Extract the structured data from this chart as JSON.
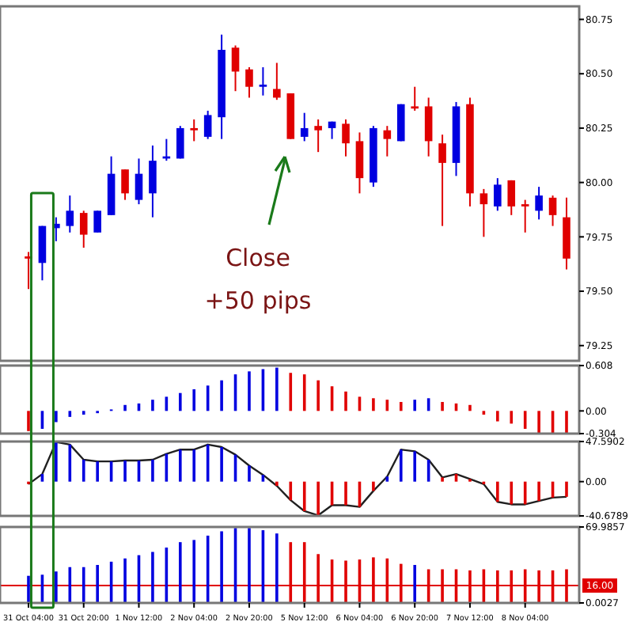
{
  "chart_data": [
    {
      "type": "candlestick",
      "ohlc": [
        [
          79.66,
          79.68,
          79.51,
          79.65
        ],
        [
          79.63,
          79.8,
          79.55,
          79.8
        ],
        [
          79.79,
          79.84,
          79.73,
          79.81
        ],
        [
          79.8,
          79.94,
          79.77,
          79.87
        ],
        [
          79.86,
          79.87,
          79.7,
          79.76
        ],
        [
          79.77,
          79.87,
          79.77,
          79.87
        ],
        [
          79.85,
          80.12,
          79.85,
          80.04
        ],
        [
          80.06,
          80.06,
          79.92,
          79.95
        ],
        [
          79.92,
          80.11,
          79.9,
          80.04
        ],
        [
          79.95,
          80.17,
          79.84,
          80.1
        ],
        [
          80.11,
          80.2,
          80.1,
          80.12
        ],
        [
          80.11,
          80.26,
          80.11,
          80.25
        ],
        [
          80.25,
          80.29,
          80.19,
          80.24
        ],
        [
          80.21,
          80.33,
          80.2,
          80.31
        ],
        [
          80.3,
          80.68,
          80.2,
          80.61
        ],
        [
          80.62,
          80.63,
          80.42,
          80.51
        ],
        [
          80.52,
          80.53,
          80.39,
          80.44
        ],
        [
          80.44,
          80.53,
          80.4,
          80.45
        ],
        [
          80.43,
          80.55,
          80.38,
          80.39
        ],
        [
          80.41,
          80.41,
          80.2,
          80.2
        ],
        [
          80.21,
          80.32,
          80.19,
          80.25
        ],
        [
          80.26,
          80.29,
          80.14,
          80.24
        ],
        [
          80.25,
          80.28,
          80.2,
          80.28
        ],
        [
          80.27,
          80.29,
          80.12,
          80.18
        ],
        [
          80.19,
          80.23,
          79.95,
          80.02
        ],
        [
          80.0,
          80.26,
          79.98,
          80.25
        ],
        [
          80.24,
          80.26,
          80.12,
          80.2
        ],
        [
          80.19,
          80.36,
          80.19,
          80.36
        ],
        [
          80.35,
          80.44,
          80.33,
          80.34
        ],
        [
          80.35,
          80.39,
          80.12,
          80.19
        ],
        [
          80.18,
          80.22,
          79.8,
          80.09
        ],
        [
          80.09,
          80.37,
          80.03,
          80.35
        ],
        [
          80.36,
          80.39,
          79.89,
          79.95
        ],
        [
          79.95,
          79.97,
          79.75,
          79.9
        ],
        [
          79.89,
          80.02,
          79.87,
          79.99
        ],
        [
          80.01,
          80.01,
          79.85,
          79.89
        ],
        [
          79.9,
          79.92,
          79.77,
          79.89
        ],
        [
          79.87,
          79.98,
          79.83,
          79.94
        ],
        [
          79.93,
          79.94,
          79.8,
          79.85
        ],
        [
          79.84,
          79.93,
          79.6,
          79.65
        ]
      ],
      "colors": [
        "#e00000",
        "#0000e0",
        "#0000e0",
        "#0000e0",
        "#e00000",
        "#0000e0",
        "#0000e0",
        "#e00000",
        "#0000e0",
        "#0000e0",
        "#0000e0",
        "#0000e0",
        "#e00000",
        "#0000e0",
        "#0000e0",
        "#e00000",
        "#e00000",
        "#0000e0",
        "#e00000",
        "#e00000",
        "#0000e0",
        "#e00000",
        "#0000e0",
        "#e00000",
        "#e00000",
        "#0000e0",
        "#e00000",
        "#0000e0",
        "#e00000",
        "#e00000",
        "#e00000",
        "#0000e0",
        "#e00000",
        "#e00000",
        "#0000e0",
        "#e00000",
        "#e00000",
        "#0000e0",
        "#e00000",
        "#e00000"
      ],
      "ylim": [
        79.18,
        80.81
      ],
      "yticks": [
        {
          "value": 79.25,
          "label": "79.25"
        },
        {
          "value": 79.5,
          "label": "79.50"
        },
        {
          "value": 79.75,
          "label": "79.75"
        },
        {
          "value": 80,
          "label": "80.00"
        },
        {
          "value": 80.25,
          "label": "80.25"
        },
        {
          "value": 80.5,
          "label": "80.50"
        },
        {
          "value": 80.75,
          "label": "80.75"
        }
      ],
      "tick_labels": "y",
      "annotations": [
        "Close\n+50 pips"
      ]
    },
    {
      "type": "bar",
      "values": [
        -0.27,
        -0.24,
        -0.15,
        -0.08,
        -0.05,
        -0.03,
        0.02,
        0.08,
        0.1,
        0.15,
        0.19,
        0.24,
        0.29,
        0.34,
        0.41,
        0.49,
        0.53,
        0.56,
        0.58,
        0.51,
        0.49,
        0.41,
        0.33,
        0.26,
        0.19,
        0.17,
        0.15,
        0.12,
        0.15,
        0.17,
        0.12,
        0.1,
        0.08,
        -0.05,
        -0.14,
        -0.17,
        -0.24,
        -0.3,
        -0.3,
        -0.3
      ],
      "colors": [
        "#e00000",
        "#0000e0",
        "#0000e0",
        "#0000e0",
        "#0000e0",
        "#0000e0",
        "#0000e0",
        "#0000e0",
        "#0000e0",
        "#0000e0",
        "#0000e0",
        "#0000e0",
        "#0000e0",
        "#0000e0",
        "#0000e0",
        "#0000e0",
        "#0000e0",
        "#0000e0",
        "#0000e0",
        "#e00000",
        "#e00000",
        "#e00000",
        "#e00000",
        "#e00000",
        "#e00000",
        "#e00000",
        "#e00000",
        "#e00000",
        "#0000e0",
        "#0000e0",
        "#e00000",
        "#e00000",
        "#e00000",
        "#e00000",
        "#e00000",
        "#e00000",
        "#e00000",
        "#e00000",
        "#e00000",
        "#e00000"
      ],
      "ylim": [
        -0.304,
        0.608
      ],
      "yticks": [
        -0.304,
        {
          "value": 0,
          "label": "0.00"
        },
        0.608
      ],
      "tick_labels": "y"
    },
    {
      "type": "bar",
      "series": [
        {
          "values": [
            -3,
            9,
            47,
            44,
            26,
            24,
            24,
            25,
            25,
            26,
            33,
            38,
            38,
            44,
            41,
            32,
            19,
            8,
            -5,
            -22,
            -35,
            -40,
            -28,
            -28,
            -30,
            -11,
            6,
            38,
            36,
            26,
            5,
            9,
            3,
            -3,
            -24,
            -27,
            -27,
            -23,
            -19,
            -18
          ],
          "colors": [
            "#e00000",
            "#0000e0",
            "#0000e0",
            "#0000e0",
            "#0000e0",
            "#0000e0",
            "#0000e0",
            "#0000e0",
            "#0000e0",
            "#0000e0",
            "#0000e0",
            "#0000e0",
            "#0000e0",
            "#0000e0",
            "#0000e0",
            "#0000e0",
            "#0000e0",
            "#0000e0",
            "#e00000",
            "#e00000",
            "#e00000",
            "#e00000",
            "#e00000",
            "#e00000",
            "#e00000",
            "#e00000",
            "#0000e0",
            "#0000e0",
            "#0000e0",
            "#0000e0",
            "#e00000",
            "#e00000",
            "#e00000",
            "#e00000",
            "#e00000",
            "#e00000",
            "#e00000",
            "#e00000",
            "#e00000",
            "#e00000"
          ]
        },
        {
          "type": "line",
          "color": "#202020",
          "values": [
            -3,
            9,
            47,
            44,
            26,
            24,
            24,
            25,
            25,
            26,
            33,
            38,
            38,
            44,
            41,
            32,
            19,
            8,
            -5,
            -22,
            -35,
            -40,
            -28,
            -28,
            -30,
            -11,
            6,
            38,
            36,
            26,
            5,
            9,
            3,
            -3,
            -24,
            -27,
            -27,
            -23,
            -19,
            -18
          ]
        }
      ],
      "ylim": [
        -40.6789,
        47.5902
      ],
      "yticks": [
        -40.6789,
        {
          "value": 0,
          "label": "0.00"
        },
        47.5902
      ],
      "tick_labels": "y"
    },
    {
      "type": "bar",
      "categories": [
        "31 Oct 04:00",
        null,
        null,
        null,
        "31 Oct 20:00",
        null,
        null,
        null,
        "1 Nov 12:00",
        null,
        null,
        null,
        "2 Nov 04:00",
        null,
        null,
        null,
        "2 Nov 20:00",
        null,
        null,
        null,
        "5 Nov 12:00",
        null,
        null,
        null,
        "6 Nov 04:00",
        null,
        null,
        null,
        "6 Nov 20:00",
        null,
        null,
        null,
        "7 Nov 12:00",
        null,
        null,
        null,
        "8 Nov 04:00",
        null,
        null,
        null
      ],
      "values": [
        25,
        26,
        29,
        33,
        33,
        35,
        38,
        41,
        44,
        47,
        51,
        56,
        58,
        62,
        66,
        69,
        69,
        67,
        64,
        56,
        56,
        45,
        40,
        39,
        40,
        42,
        41,
        36,
        35,
        31,
        31,
        31,
        30,
        31,
        30,
        30,
        31,
        30,
        30,
        31
      ],
      "colors": [
        "#0000e0",
        "#0000e0",
        "#0000e0",
        "#0000e0",
        "#0000e0",
        "#0000e0",
        "#0000e0",
        "#0000e0",
        "#0000e0",
        "#0000e0",
        "#0000e0",
        "#0000e0",
        "#0000e0",
        "#0000e0",
        "#0000e0",
        "#0000e0",
        "#0000e0",
        "#0000e0",
        "#0000e0",
        "#e00000",
        "#e00000",
        "#e00000",
        "#e00000",
        "#e00000",
        "#e00000",
        "#e00000",
        "#e00000",
        "#e00000",
        "#0000e0",
        "#e00000",
        "#e00000",
        "#e00000",
        "#e00000",
        "#e00000",
        "#e00000",
        "#e00000",
        "#e00000",
        "#e00000",
        "#e00000",
        "#e00000"
      ],
      "ylim": [
        0.0027,
        69.9857
      ],
      "yticks": [
        0.0027,
        69.9857
      ],
      "ref_lines": [
        {
          "axis": "y",
          "value": 16,
          "label": "16.00",
          "color": "#e00000"
        }
      ]
    }
  ]
}
